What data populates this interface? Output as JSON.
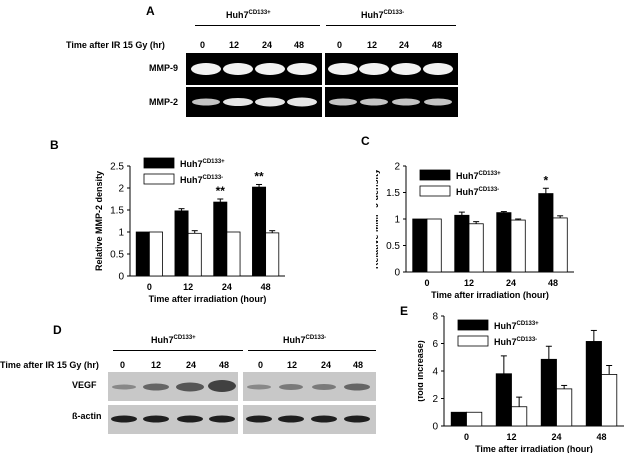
{
  "colors": {
    "black_bar": "#000000",
    "white_bar": "#ffffff",
    "blot_bg": "#000000",
    "blot_grey": "#c8c8c8"
  },
  "panel_a": {
    "letter": "A",
    "group1": "Huh7",
    "group1_sup": "CD133+",
    "group2": "Huh7",
    "group2_sup": "CD133-",
    "time_label": "Time after IR 15 Gy (hr)",
    "times": [
      "0",
      "12",
      "24",
      "48",
      "0",
      "12",
      "24",
      "48"
    ],
    "rows": [
      "MMP-9",
      "MMP-2"
    ]
  },
  "panel_d": {
    "letter": "D",
    "group1": "Huh7",
    "group1_sup": "CD133+",
    "group2": "Huh7",
    "group2_sup": "CD133-",
    "time_label": "Time after IR 15 Gy (hr)",
    "times": [
      "0",
      "12",
      "24",
      "48",
      "0",
      "12",
      "24",
      "48"
    ],
    "rows": [
      "VEGF",
      "ß-actin"
    ]
  },
  "chart_data": [
    {
      "panel": "B",
      "type": "bar",
      "categories": [
        "0",
        "12",
        "24",
        "48"
      ],
      "xlabel": "Time after irradiation (hour)",
      "ylabel": "Relative MMP-2 density",
      "ylim": [
        0,
        2.5
      ],
      "yticks": [
        0,
        0.5,
        1,
        1.5,
        2,
        2.5
      ],
      "legend_position": "top-left",
      "series": [
        {
          "name": "Huh7",
          "name_sup": "CD133+",
          "color": "#000000",
          "values": [
            1.0,
            1.48,
            1.68,
            2.02
          ],
          "errors": [
            0,
            0.05,
            0.07,
            0.06
          ]
        },
        {
          "name": "Huh7",
          "name_sup": "CD133-",
          "color": "#ffffff",
          "values": [
            1.0,
            0.97,
            1.0,
            0.98
          ],
          "errors": [
            0,
            0.06,
            0,
            0.05
          ]
        }
      ],
      "annotations": [
        {
          "category": "24",
          "text": "**"
        },
        {
          "category": "48",
          "text": "**"
        }
      ]
    },
    {
      "panel": "C",
      "type": "bar",
      "categories": [
        "0",
        "12",
        "24",
        "48"
      ],
      "xlabel": "Time after irradiation (hour)",
      "ylabel": "Relative MMP-9 density",
      "ylim": [
        0,
        2
      ],
      "yticks": [
        0,
        0.5,
        1,
        1.5,
        2
      ],
      "legend_position": "top-left",
      "series": [
        {
          "name": "Huh7",
          "name_sup": "CD133+",
          "color": "#000000",
          "values": [
            1.0,
            1.07,
            1.12,
            1.48
          ],
          "errors": [
            0,
            0.06,
            0.02,
            0.1
          ]
        },
        {
          "name": "Huh7",
          "name_sup": "CD133-",
          "color": "#ffffff",
          "values": [
            1.0,
            0.91,
            0.98,
            1.02
          ],
          "errors": [
            0,
            0.04,
            0.02,
            0.04
          ]
        }
      ],
      "annotations": [
        {
          "category": "48",
          "text": "*"
        }
      ]
    },
    {
      "panel": "E",
      "type": "bar",
      "categories": [
        "0",
        "12",
        "24",
        "48"
      ],
      "xlabel": "Time after irradiation (hour)",
      "ylabel": "VEGF protein in media (fold increase)",
      "ylim": [
        0,
        8
      ],
      "yticks": [
        0,
        2,
        4,
        6,
        8
      ],
      "legend_position": "top-left",
      "series": [
        {
          "name": "Huh7",
          "name_sup": "CD133+",
          "color": "#000000",
          "values": [
            1.0,
            3.8,
            4.85,
            6.15
          ],
          "errors": [
            0,
            1.3,
            0.95,
            0.8
          ]
        },
        {
          "name": "Huh7",
          "name_sup": "CD133-",
          "color": "#ffffff",
          "values": [
            1.0,
            1.4,
            2.7,
            3.75
          ],
          "errors": [
            0,
            0.7,
            0.25,
            0.65
          ]
        }
      ],
      "annotations": []
    }
  ],
  "panel_letters": {
    "b": "B",
    "c": "C",
    "e": "E"
  }
}
